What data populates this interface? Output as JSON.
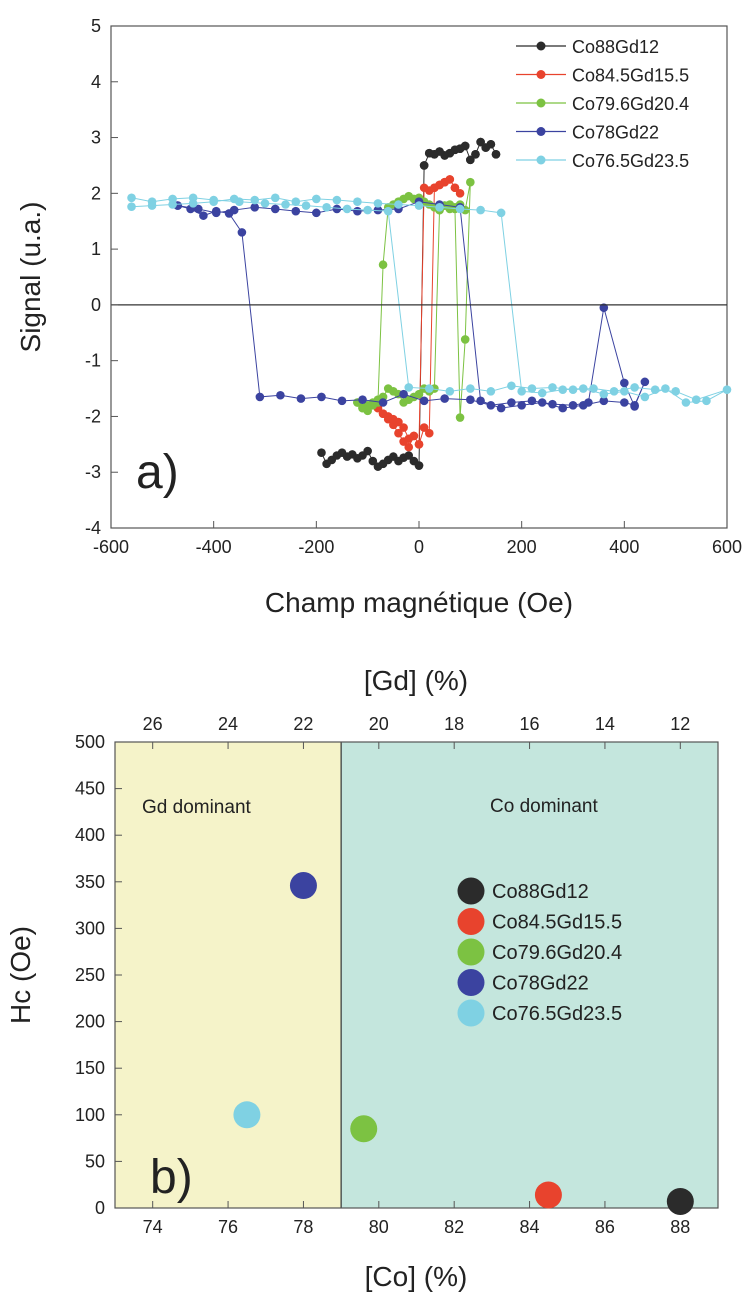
{
  "colors": {
    "Co88Gd12": "#2b2b2b",
    "Co84.5Gd15.5": "#e8432d",
    "Co79.6Gd20.4": "#7cc242",
    "Co78Gd22": "#3b43a0",
    "Co76.5Gd23.5": "#7fd1e3",
    "gd_region": "#f5f3c9",
    "co_region": "#c4e6dd"
  },
  "chart_data": [
    {
      "type": "line",
      "title": "",
      "panel_label": "a)",
      "xlabel": "Champ magnétique (Oe)",
      "ylabel": "Signal (u.a.)",
      "xlim": [
        -600,
        600
      ],
      "ylim": [
        -4,
        5
      ],
      "xticks": [
        "-600",
        "-400",
        "-200",
        "0",
        "200",
        "400",
        "600"
      ],
      "yticks": [
        "-4",
        "-3",
        "-2",
        "-1",
        "0",
        "1",
        "2",
        "3",
        "4",
        "5"
      ],
      "legend_position": "top-right",
      "series": [
        {
          "name": "Co88Gd12",
          "color": "#2b2b2b",
          "x": [
            -190,
            -180,
            -170,
            -160,
            -150,
            -140,
            -130,
            -120,
            -110,
            -100,
            -90,
            -80,
            -70,
            -60,
            -50,
            -40,
            -30,
            -20,
            -10,
            0,
            10,
            20,
            30,
            40,
            50,
            60,
            70,
            80,
            90,
            100,
            110,
            120,
            130,
            140,
            150,
            150,
            140,
            130,
            120,
            110,
            100,
            90,
            80,
            70,
            60,
            50,
            40,
            30,
            20,
            10,
            0
          ],
          "y": [
            -2.65,
            -2.85,
            -2.78,
            -2.7,
            -2.65,
            -2.72,
            -2.68,
            -2.75,
            -2.7,
            -2.62,
            -2.8,
            -2.9,
            -2.85,
            -2.78,
            -2.72,
            -2.8,
            -2.74,
            -2.7,
            -2.8,
            -2.88,
            2.5,
            2.72,
            2.7,
            2.75,
            2.68,
            2.72,
            2.78,
            2.8,
            2.85,
            2.6,
            2.7,
            2.92,
            2.82,
            2.88,
            2.7,
            2.7,
            2.88,
            2.82,
            2.92,
            2.7,
            2.6,
            2.85,
            2.8,
            2.78,
            2.72,
            2.68,
            2.75,
            2.7,
            2.72,
            2.5,
            -2.88
          ]
        },
        {
          "name": "Co84.5Gd15.5",
          "color": "#e8432d",
          "x": [
            -80,
            -70,
            -60,
            -50,
            -40,
            -30,
            -20,
            -10,
            0,
            10,
            20,
            30,
            40,
            50,
            60,
            70,
            80,
            70,
            60,
            50,
            40,
            30,
            20,
            10,
            0,
            -10,
            -20,
            -30,
            -40,
            -50,
            -60,
            -70,
            -80
          ],
          "y": [
            -1.85,
            -1.95,
            -2.05,
            -2.15,
            -2.3,
            -2.45,
            -2.55,
            -2.35,
            -2.5,
            2.1,
            2.05,
            2.1,
            2.15,
            2.2,
            2.25,
            2.1,
            2.0,
            2.1,
            2.25,
            2.2,
            2.15,
            2.1,
            -2.3,
            -2.2,
            -2.5,
            -2.35,
            -2.4,
            -2.2,
            -2.1,
            -2.05,
            -2.0,
            -1.95,
            -1.85
          ]
        },
        {
          "name": "Co79.6Gd20.4",
          "color": "#7cc242",
          "x": [
            -120,
            -110,
            -100,
            -90,
            -80,
            -70,
            -60,
            -50,
            -40,
            -30,
            -20,
            -10,
            0,
            10,
            20,
            30,
            40,
            50,
            60,
            70,
            80,
            90,
            100,
            90,
            80,
            70,
            60,
            50,
            40,
            30,
            20,
            10,
            0,
            -10,
            -20,
            -30,
            -40,
            -50,
            -60,
            -70,
            -80,
            -90,
            -100,
            -110,
            -120
          ],
          "y": [
            -1.75,
            -1.85,
            -1.9,
            -1.8,
            -1.75,
            0.72,
            1.75,
            1.8,
            1.85,
            1.9,
            1.95,
            1.9,
            1.92,
            1.85,
            1.8,
            1.75,
            1.7,
            1.78,
            1.8,
            1.72,
            -2.02,
            -0.62,
            2.2,
            1.7,
            1.8,
            1.75,
            1.72,
            1.78,
            1.7,
            -1.5,
            -1.55,
            -1.5,
            -1.6,
            -1.65,
            -1.7,
            -1.75,
            -1.6,
            -1.55,
            -1.5,
            -1.65,
            -1.7,
            -1.75,
            -1.8,
            -1.85,
            -1.75
          ]
        },
        {
          "name": "Co78Gd22",
          "color": "#3b43a0",
          "x": [
            -470,
            -445,
            -420,
            -395,
            -370,
            -345,
            -310,
            -270,
            -230,
            -190,
            -150,
            -110,
            -70,
            -30,
            10,
            50,
            100,
            140,
            180,
            220,
            260,
            300,
            330,
            360,
            400,
            420,
            440,
            420,
            400,
            360,
            320,
            280,
            240,
            200,
            160,
            120,
            80,
            40,
            0,
            -40,
            -80,
            -120,
            -160,
            -200,
            -240,
            -280,
            -320,
            -360,
            -395,
            -430,
            -470
          ],
          "y": [
            1.78,
            1.72,
            1.6,
            1.68,
            1.64,
            1.3,
            -1.65,
            -1.62,
            -1.68,
            -1.65,
            -1.72,
            -1.7,
            -1.75,
            -1.6,
            -1.72,
            -1.68,
            -1.7,
            -1.8,
            -1.75,
            -1.72,
            -1.78,
            -1.8,
            -1.75,
            -0.05,
            -1.4,
            -1.82,
            -1.38,
            -1.8,
            -1.75,
            -1.72,
            -1.8,
            -1.85,
            -1.75,
            -1.8,
            -1.85,
            -1.72,
            1.75,
            1.8,
            1.85,
            1.72,
            1.7,
            1.68,
            1.72,
            1.65,
            1.68,
            1.72,
            1.75,
            1.7,
            1.65,
            1.72,
            1.78
          ]
        },
        {
          "name": "Co76.5Gd23.5",
          "color": "#7fd1e3",
          "x": [
            -560,
            -520,
            -480,
            -440,
            -400,
            -350,
            -300,
            -260,
            -220,
            -180,
            -140,
            -100,
            -60,
            -20,
            20,
            60,
            100,
            140,
            180,
            220,
            260,
            300,
            340,
            380,
            420,
            460,
            500,
            540,
            600,
            560,
            520,
            480,
            440,
            400,
            360,
            320,
            280,
            240,
            200,
            160,
            120,
            80,
            40,
            0,
            -40,
            -80,
            -120,
            -160,
            -200,
            -240,
            -280,
            -320,
            -360,
            -400,
            -440,
            -480,
            -520,
            -560
          ],
          "y": [
            1.92,
            1.85,
            1.9,
            1.92,
            1.88,
            1.85,
            1.82,
            1.8,
            1.78,
            1.75,
            1.72,
            1.7,
            1.68,
            -1.48,
            -1.5,
            -1.55,
            -1.5,
            -1.55,
            -1.45,
            -1.5,
            -1.48,
            -1.52,
            -1.5,
            -1.55,
            -1.48,
            -1.52,
            -1.55,
            -1.7,
            -1.52,
            -1.72,
            -1.75,
            -1.5,
            -1.65,
            -1.55,
            -1.6,
            -1.5,
            -1.52,
            -1.58,
            -1.55,
            1.65,
            1.7,
            1.72,
            1.75,
            1.78,
            1.8,
            1.82,
            1.85,
            1.88,
            1.9,
            1.85,
            1.92,
            1.88,
            1.9,
            1.85,
            1.82,
            1.8,
            1.78,
            1.76
          ]
        }
      ]
    },
    {
      "type": "scatter",
      "title": "",
      "panel_label": "b)",
      "xlabel": "[Co] (%)",
      "ylabel": "Hc (Oe)",
      "top_xlabel": "[Gd] (%)",
      "xlim": [
        73,
        89
      ],
      "ylim": [
        0,
        500
      ],
      "xticks": [
        "74",
        "76",
        "78",
        "80",
        "82",
        "84",
        "86",
        "88"
      ],
      "yticks": [
        "0",
        "50",
        "100",
        "150",
        "200",
        "250",
        "300",
        "350",
        "400",
        "450",
        "500"
      ],
      "top_xticks": [
        "26",
        "24",
        "22",
        "20",
        "18",
        "16",
        "14",
        "12"
      ],
      "divider_co": 79,
      "regions": [
        "Gd dominant",
        "Co dominant"
      ],
      "legend_position": "center-right",
      "series": [
        {
          "name": "Co88Gd12",
          "color": "#2b2b2b",
          "x": [
            88.0
          ],
          "y": [
            7
          ]
        },
        {
          "name": "Co84.5Gd15.5",
          "color": "#e8432d",
          "x": [
            84.5
          ],
          "y": [
            14
          ]
        },
        {
          "name": "Co79.6Gd20.4",
          "color": "#7cc242",
          "x": [
            79.6
          ],
          "y": [
            85
          ]
        },
        {
          "name": "Co78Gd22",
          "color": "#3b43a0",
          "x": [
            78.0
          ],
          "y": [
            346
          ]
        },
        {
          "name": "Co76.5Gd23.5",
          "color": "#7fd1e3",
          "x": [
            76.5
          ],
          "y": [
            100
          ]
        }
      ]
    }
  ]
}
